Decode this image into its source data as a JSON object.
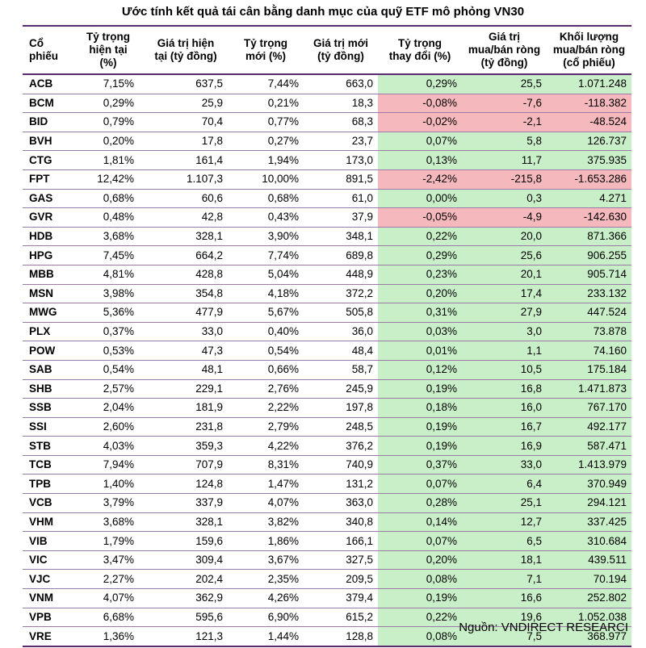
{
  "title": "Ước tính kết quả tái cân bằng danh mục của quỹ ETF mô phỏng VN30",
  "headers": [
    [
      "Cổ",
      "phiếu"
    ],
    [
      "Tỷ trọng",
      "hiện tại",
      "(%)"
    ],
    [
      "Giá trị hiện",
      "tại (tỷ đồng)"
    ],
    [
      "Tỷ trọng",
      "mới (%)"
    ],
    [
      "Giá trị mới",
      "(tỷ đồng)"
    ],
    [
      "Tỷ trọng",
      "thay đổi (%)"
    ],
    [
      "Giá trị",
      "mua/bán ròng",
      "(tỷ đồng)"
    ],
    [
      "Khối lượng",
      "mua/bán ròng",
      "(cổ phiếu)"
    ]
  ],
  "rows": [
    [
      "ACB",
      "7,15%",
      "637,5",
      "7,44%",
      "663,0",
      "0,29%",
      "25,5",
      "1.071.248"
    ],
    [
      "BCM",
      "0,29%",
      "25,9",
      "0,21%",
      "18,3",
      "-0,08%",
      "-7,6",
      "-118.382"
    ],
    [
      "BID",
      "0,79%",
      "70,4",
      "0,77%",
      "68,3",
      "-0,02%",
      "-2,1",
      "-48.524"
    ],
    [
      "BVH",
      "0,20%",
      "17,8",
      "0,27%",
      "23,7",
      "0,07%",
      "5,8",
      "126.737"
    ],
    [
      "CTG",
      "1,81%",
      "161,4",
      "1,94%",
      "173,0",
      "0,13%",
      "11,7",
      "375.935"
    ],
    [
      "FPT",
      "12,42%",
      "1.107,3",
      "10,00%",
      "891,5",
      "-2,42%",
      "-215,8",
      "-1.653.286"
    ],
    [
      "GAS",
      "0,68%",
      "60,6",
      "0,68%",
      "61,0",
      "0,00%",
      "0,3",
      "4.271"
    ],
    [
      "GVR",
      "0,48%",
      "42,8",
      "0,43%",
      "37,9",
      "-0,05%",
      "-4,9",
      "-142.630"
    ],
    [
      "HDB",
      "3,68%",
      "328,1",
      "3,90%",
      "348,1",
      "0,22%",
      "20,0",
      "871.366"
    ],
    [
      "HPG",
      "7,45%",
      "664,2",
      "7,74%",
      "689,8",
      "0,29%",
      "25,6",
      "906.255"
    ],
    [
      "MBB",
      "4,81%",
      "428,8",
      "5,04%",
      "448,9",
      "0,23%",
      "20,1",
      "905.714"
    ],
    [
      "MSN",
      "3,98%",
      "354,8",
      "4,18%",
      "372,2",
      "0,20%",
      "17,4",
      "233.132"
    ],
    [
      "MWG",
      "5,36%",
      "477,9",
      "5,67%",
      "505,8",
      "0,31%",
      "27,9",
      "447.524"
    ],
    [
      "PLX",
      "0,37%",
      "33,0",
      "0,40%",
      "36,0",
      "0,03%",
      "3,0",
      "73.878"
    ],
    [
      "POW",
      "0,53%",
      "47,3",
      "0,54%",
      "48,4",
      "0,01%",
      "1,1",
      "74.160"
    ],
    [
      "SAB",
      "0,54%",
      "48,1",
      "0,66%",
      "58,7",
      "0,12%",
      "10,5",
      "175.184"
    ],
    [
      "SHB",
      "2,57%",
      "229,1",
      "2,76%",
      "245,9",
      "0,19%",
      "16,8",
      "1.471.873"
    ],
    [
      "SSB",
      "2,04%",
      "181,9",
      "2,22%",
      "197,8",
      "0,18%",
      "16,0",
      "767.170"
    ],
    [
      "SSI",
      "2,60%",
      "231,8",
      "2,79%",
      "248,5",
      "0,19%",
      "16,7",
      "492.177"
    ],
    [
      "STB",
      "4,03%",
      "359,3",
      "4,22%",
      "376,2",
      "0,19%",
      "16,9",
      "587.471"
    ],
    [
      "TCB",
      "7,94%",
      "707,9",
      "8,31%",
      "740,9",
      "0,37%",
      "33,0",
      "1.413.979"
    ],
    [
      "TPB",
      "1,40%",
      "124,8",
      "1,47%",
      "131,2",
      "0,07%",
      "6,4",
      "370.949"
    ],
    [
      "VCB",
      "3,79%",
      "337,9",
      "4,07%",
      "363,0",
      "0,28%",
      "25,1",
      "294.121"
    ],
    [
      "VHM",
      "3,68%",
      "328,1",
      "3,82%",
      "340,8",
      "0,14%",
      "12,7",
      "337.425"
    ],
    [
      "VIB",
      "1,79%",
      "159,6",
      "1,86%",
      "166,1",
      "0,07%",
      "6,5",
      "310.684"
    ],
    [
      "VIC",
      "3,47%",
      "309,4",
      "3,67%",
      "327,5",
      "0,20%",
      "18,1",
      "439.511"
    ],
    [
      "VJC",
      "2,27%",
      "202,4",
      "2,35%",
      "209,5",
      "0,08%",
      "7,1",
      "70.194"
    ],
    [
      "VNM",
      "4,07%",
      "362,9",
      "4,26%",
      "379,4",
      "0,19%",
      "16,6",
      "252.802"
    ],
    [
      "VPB",
      "6,68%",
      "595,6",
      "6,90%",
      "615,2",
      "0,22%",
      "19,6",
      "1.052.038"
    ],
    [
      "VRE",
      "1,36%",
      "121,3",
      "1,44%",
      "128,8",
      "0,08%",
      "7,5",
      "368.977"
    ]
  ],
  "source": "Nguồn: VNDIRECT RESEARCI",
  "colors": {
    "positive": "#c9efc8",
    "negative": "#f5b8bd",
    "rule": "#5c2a6e"
  }
}
